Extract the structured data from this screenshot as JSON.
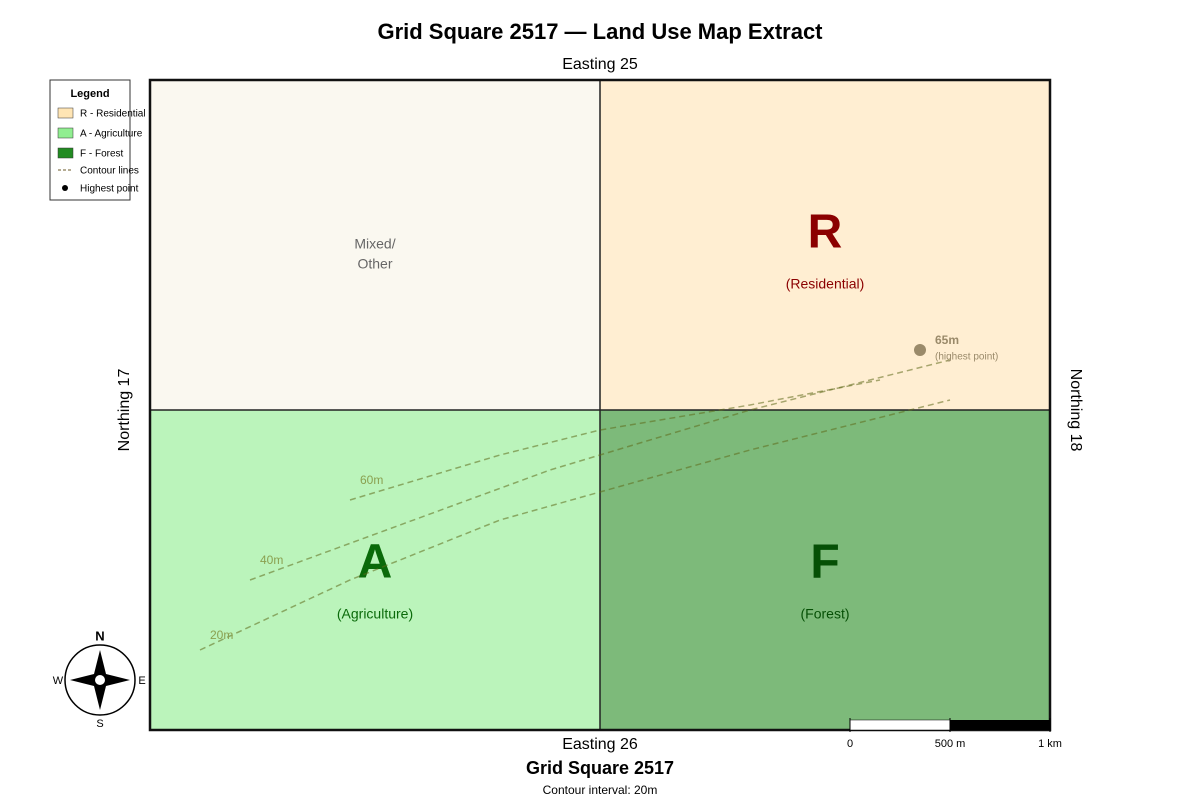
{
  "title": "Grid Square 2517 — Land Use Map Extract",
  "axis_labels": {
    "top": "Easting 25",
    "bottom": "Easting 26",
    "left": "Northing 17",
    "right": "Northing 18"
  },
  "legend": {
    "title": "Legend",
    "items": [
      "R - Residential",
      "A - Agriculture",
      "F - Forest",
      "Contour lines",
      "Highest point"
    ]
  },
  "quadrants": [
    {
      "lines": [
        "Mixed/",
        "Other"
      ]
    },
    {
      "letter": "R",
      "label": "(Residential)"
    },
    {
      "letter": "A",
      "label": "(Agriculture)"
    },
    {
      "letter": "F",
      "label": "(Forest)"
    }
  ],
  "contours": [
    "20m",
    "40m",
    "60m"
  ],
  "highest_point": {
    "height": "65m",
    "label": "(highest point)"
  },
  "compass": {
    "n": "N",
    "s": "S",
    "e": "E",
    "w": "W"
  },
  "scale_bar": [
    "0",
    "500 m",
    "1 km"
  ],
  "footer": {
    "title": "Grid Square 2517",
    "note": "Contour interval: 20m"
  }
}
